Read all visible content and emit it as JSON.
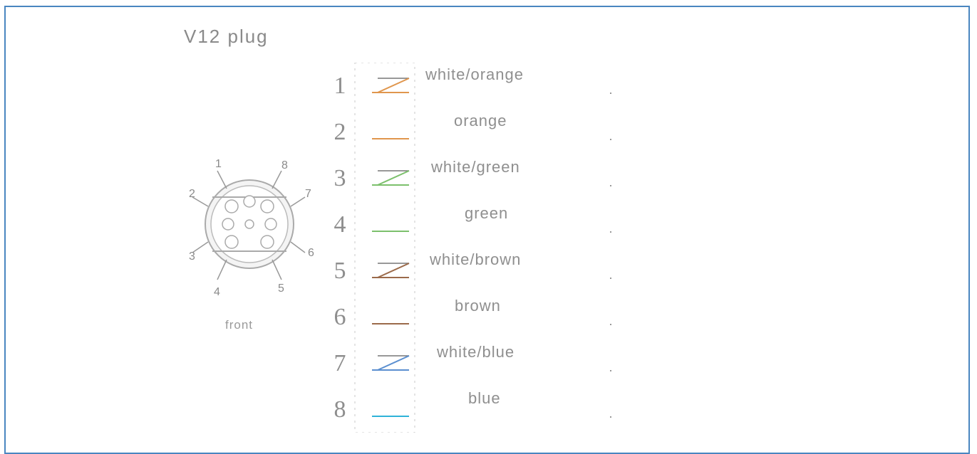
{
  "diagram": {
    "title": "V12 plug",
    "view_label": "front",
    "connector_pins": [
      "1",
      "2",
      "3",
      "4",
      "5",
      "6",
      "7",
      "8"
    ],
    "wires": [
      {
        "pin": "1",
        "label": "white/orange",
        "color": "#e0964d",
        "striped": true
      },
      {
        "pin": "2",
        "label": "orange",
        "color": "#e0964d",
        "striped": false
      },
      {
        "pin": "3",
        "label": "white/green",
        "color": "#7cc06c",
        "striped": true
      },
      {
        "pin": "4",
        "label": "green",
        "color": "#7cc06c",
        "striped": false
      },
      {
        "pin": "5",
        "label": "white/brown",
        "color": "#9b6a4a",
        "striped": true
      },
      {
        "pin": "6",
        "label": "brown",
        "color": "#9b6a4a",
        "striped": false
      },
      {
        "pin": "7",
        "label": "white/blue",
        "color": "#5b8fd0",
        "striped": true
      },
      {
        "pin": "8",
        "label": "blue",
        "color": "#2fb3d8",
        "striped": false
      }
    ]
  }
}
